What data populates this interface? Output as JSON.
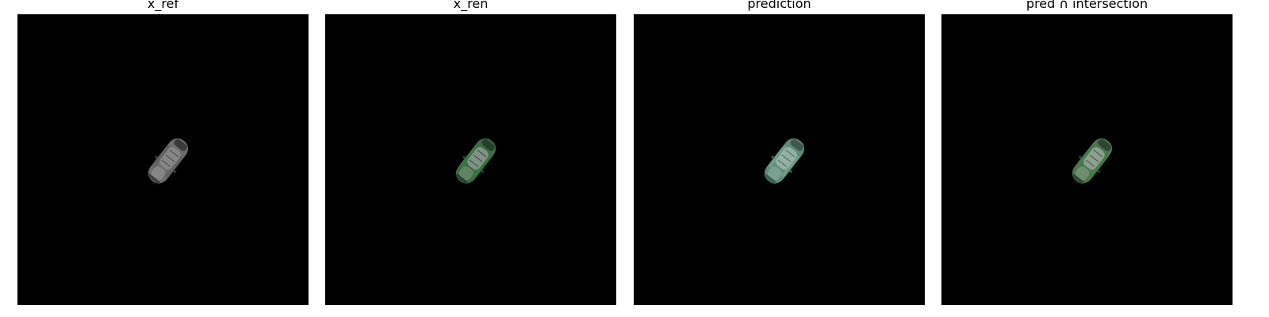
{
  "panels": [
    {
      "title": "x_ref",
      "car": {
        "body": "#6d6d6d",
        "highlight": "#9a9a9a",
        "shade": "#3a3a3a",
        "glass": "#8c8c8c",
        "tint": "#5f5f5f"
      }
    },
    {
      "title": "x_ren",
      "car": {
        "body": "#3f6b44",
        "highlight": "#7c9a80",
        "shade": "#24402a",
        "glass": "#8e9a90",
        "tint": "#2f7a3e"
      }
    },
    {
      "title": "prediction",
      "car": {
        "body": "#5f8a78",
        "highlight": "#8fb5a2",
        "shade": "#3b5a4c",
        "glass": "#9cb8ab",
        "tint": "#6f9d88"
      }
    },
    {
      "title": "pred ∩ intersection",
      "car": {
        "body": "#4d7450",
        "highlight": "#86a585",
        "shade": "#2c4630",
        "glass": "#98a898",
        "tint": "#3f7d47"
      }
    }
  ]
}
